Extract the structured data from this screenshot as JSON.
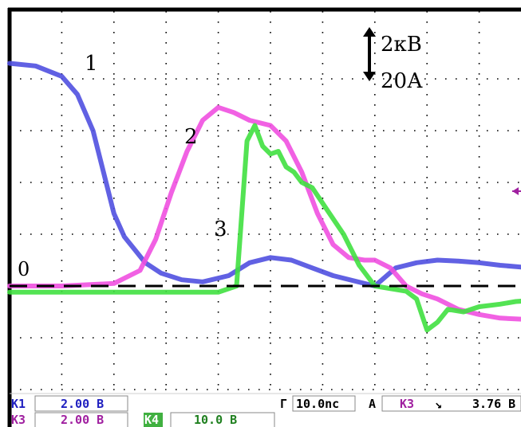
{
  "chart_data": {
    "type": "line",
    "x_unit": "divisions",
    "y_unit": "divisions",
    "xlim": [
      0,
      10
    ],
    "ylim": [
      -2,
      5
    ],
    "grid": true,
    "scale_text_top": "2кВ",
    "scale_text_bottom": "20А",
    "zero_label": "0",
    "reference_line": 0,
    "series": [
      {
        "name": "1",
        "color": "#5050e0",
        "x": [
          0,
          0.5,
          1.0,
          1.3,
          1.6,
          1.8,
          2.0,
          2.2,
          2.4,
          2.6,
          2.9,
          3.3,
          3.7,
          4.2,
          4.6,
          5.0,
          5.4,
          5.8,
          6.2,
          6.6,
          7.0,
          7.4,
          7.8,
          8.2,
          8.6,
          9.0,
          9.4,
          10.0
        ],
        "y": [
          4.3,
          4.25,
          4.05,
          3.7,
          3.0,
          2.2,
          1.4,
          0.95,
          0.7,
          0.45,
          0.25,
          0.12,
          0.08,
          0.2,
          0.45,
          0.55,
          0.5,
          0.35,
          0.2,
          0.1,
          0.0,
          0.35,
          0.45,
          0.5,
          0.48,
          0.45,
          0.4,
          0.35
        ]
      },
      {
        "name": "2",
        "color": "#f050e0",
        "x": [
          0,
          1.0,
          2.0,
          2.5,
          2.8,
          3.1,
          3.4,
          3.7,
          4.0,
          4.3,
          4.6,
          5.0,
          5.3,
          5.6,
          5.9,
          6.2,
          6.5,
          6.8,
          7.0,
          7.3,
          7.6,
          7.9,
          8.2,
          8.6,
          9.0,
          9.4,
          10.0
        ],
        "y": [
          0.0,
          0.0,
          0.05,
          0.3,
          0.9,
          1.8,
          2.6,
          3.2,
          3.45,
          3.35,
          3.2,
          3.1,
          2.8,
          2.2,
          1.4,
          0.8,
          0.55,
          0.5,
          0.5,
          0.35,
          0.0,
          -0.15,
          -0.25,
          -0.45,
          -0.55,
          -0.62,
          -0.65
        ]
      },
      {
        "name": "3",
        "color": "#40e040",
        "x": [
          0,
          2.0,
          4.0,
          4.35,
          4.55,
          4.7,
          4.85,
          5.0,
          5.15,
          5.3,
          5.45,
          5.6,
          5.8,
          6.1,
          6.4,
          6.7,
          7.0,
          7.3,
          7.6,
          7.8,
          8.0,
          8.2,
          8.4,
          8.7,
          9.0,
          9.4,
          9.7,
          10.0
        ],
        "y": [
          -0.12,
          -0.12,
          -0.12,
          0.0,
          2.8,
          3.1,
          2.7,
          2.55,
          2.6,
          2.3,
          2.2,
          2.0,
          1.9,
          1.45,
          1.0,
          0.4,
          0.0,
          -0.05,
          -0.1,
          -0.25,
          -0.85,
          -0.7,
          -0.45,
          -0.5,
          -0.4,
          -0.35,
          -0.3,
          -0.28
        ]
      }
    ]
  },
  "status_bar": {
    "ch1_label": "K1",
    "ch1_value": "2.00 B",
    "ch3_label": "K3",
    "ch3_value": "2.00 B",
    "ch4_label": "K4",
    "ch4_value": "10.0 B",
    "timebase_label": "Г",
    "timebase_value": "10.0nc",
    "trigger_label": "A",
    "trigger_channel": "K3",
    "trigger_slope": "↘",
    "trigger_level": "3.76 B"
  },
  "colors": {
    "ch1": "#5050e0",
    "ch2": "#f050e0",
    "ch3": "#40e040",
    "ch3_text": "#a020a0",
    "ch4_badge_bg": "#40b040",
    "ch4_text": "#208020",
    "frame": "#000000"
  }
}
